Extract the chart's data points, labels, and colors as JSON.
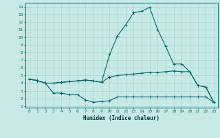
{
  "xlabel": "Humidex (Indice chaleur)",
  "bg_color": "#c8eae6",
  "grid_color": "#a8d4d0",
  "line_color": "#006666",
  "line1": {
    "x": [
      0,
      1,
      2,
      3,
      4,
      5,
      6,
      7,
      8,
      9,
      10,
      11,
      12,
      13,
      14,
      15,
      16,
      17,
      18,
      19,
      20,
      21,
      22,
      23
    ],
    "y": [
      4.5,
      4.35,
      4.0,
      4.0,
      4.1,
      4.2,
      4.3,
      4.4,
      4.3,
      4.1,
      7.7,
      10.2,
      11.6,
      13.2,
      13.4,
      13.9,
      11.0,
      8.8,
      6.5,
      6.5,
      5.5,
      3.7,
      3.5,
      1.5
    ]
  },
  "line2": {
    "x": [
      0,
      1,
      2,
      3,
      4,
      5,
      6,
      7,
      8,
      9,
      10,
      11,
      12,
      13,
      14,
      15,
      16,
      17,
      18,
      19,
      20,
      21,
      22,
      23
    ],
    "y": [
      4.5,
      4.35,
      4.0,
      2.7,
      2.7,
      2.5,
      2.5,
      1.8,
      1.5,
      1.6,
      1.7,
      2.2,
      2.2,
      2.2,
      2.2,
      2.2,
      2.2,
      2.2,
      2.2,
      2.2,
      2.2,
      2.2,
      2.2,
      1.5
    ]
  },
  "line3": {
    "x": [
      0,
      1,
      2,
      3,
      4,
      5,
      6,
      7,
      8,
      9,
      10,
      11,
      12,
      13,
      14,
      15,
      16,
      17,
      18,
      19,
      20,
      21,
      22,
      23
    ],
    "y": [
      4.5,
      4.35,
      4.0,
      4.0,
      4.1,
      4.2,
      4.3,
      4.4,
      4.3,
      4.1,
      4.8,
      5.0,
      5.1,
      5.2,
      5.3,
      5.4,
      5.4,
      5.5,
      5.6,
      5.5,
      5.5,
      3.7,
      3.5,
      1.5
    ]
  },
  "ylim": [
    0.8,
    14.5
  ],
  "xlim": [
    -0.5,
    23.5
  ],
  "yticks": [
    1,
    2,
    3,
    4,
    5,
    6,
    7,
    8,
    9,
    10,
    11,
    12,
    13,
    14
  ],
  "xticks": [
    0,
    1,
    2,
    3,
    4,
    5,
    6,
    7,
    8,
    9,
    10,
    11,
    12,
    13,
    14,
    15,
    16,
    17,
    18,
    19,
    20,
    21,
    22,
    23
  ]
}
